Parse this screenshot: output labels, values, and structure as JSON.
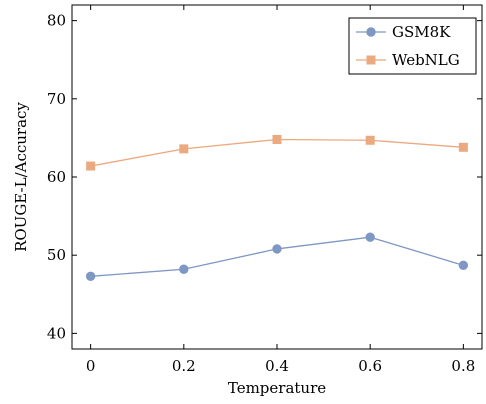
{
  "chart_data": {
    "type": "line",
    "title": "",
    "xlabel": "Temperature",
    "ylabel": "ROUGE-L/Accuracy",
    "x": [
      0,
      0.2,
      0.4,
      0.6,
      0.8
    ],
    "x_tick_labels": [
      "0",
      "0.2",
      "0.4",
      "0.6",
      "0.8"
    ],
    "y_ticks": [
      40,
      50,
      60,
      70,
      80
    ],
    "y_tick_labels": [
      "40",
      "50",
      "60",
      "70",
      "80"
    ],
    "xlim": [
      -0.04,
      0.84
    ],
    "ylim": [
      38,
      82
    ],
    "grid": false,
    "legend_position": "top-right",
    "series": [
      {
        "name": "GSM8K",
        "marker": "circle",
        "color": "#7f97c4",
        "values": [
          47.3,
          48.2,
          50.8,
          52.3,
          48.7
        ]
      },
      {
        "name": "WebNLG",
        "marker": "square",
        "color": "#eba980",
        "values": [
          61.4,
          63.6,
          64.8,
          64.7,
          63.8
        ]
      }
    ]
  }
}
